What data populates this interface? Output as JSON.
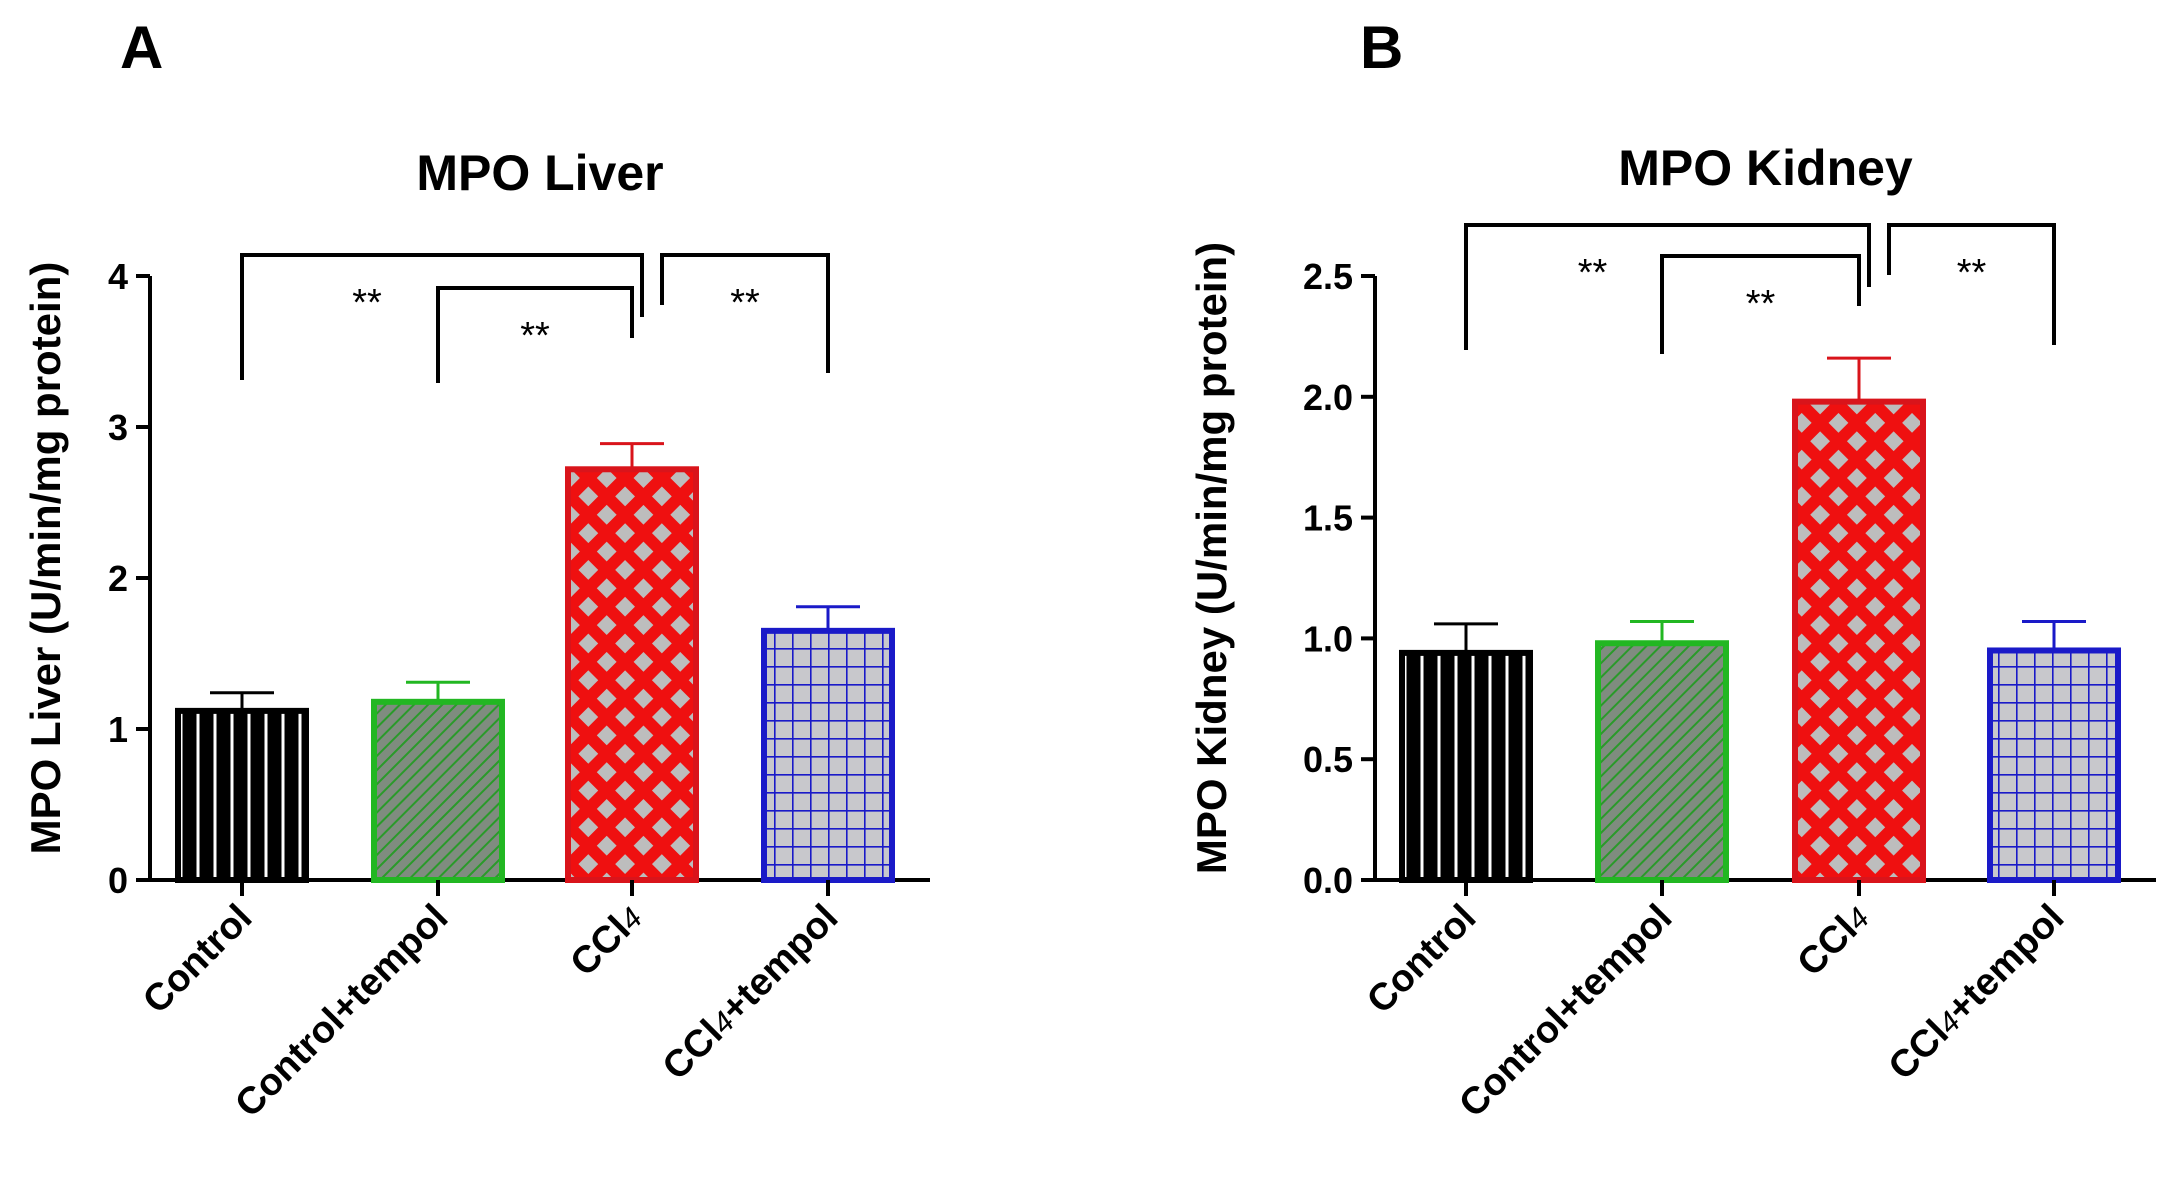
{
  "chart_data": [
    {
      "type": "bar",
      "panel": "A",
      "title": "MPO Liver",
      "xlabel": "",
      "ylabel": "MPO Liver (U/min/mg protein)",
      "ylim": [
        0,
        4
      ],
      "yticks": [
        "0",
        "1",
        "2",
        "3",
        "4"
      ],
      "categories": [
        "Control",
        "Control+tempol",
        "CCl4",
        "CCl4+tempol"
      ],
      "category_parts": [
        [
          {
            "t": "Control",
            "sub": false
          }
        ],
        [
          {
            "t": "Control+tempol",
            "sub": false
          }
        ],
        [
          {
            "t": "CCl",
            "sub": false
          },
          {
            "t": "4",
            "sub": true
          }
        ],
        [
          {
            "t": "CCl",
            "sub": false
          },
          {
            "t": "4",
            "sub": true
          },
          {
            "t": "+tempol",
            "sub": false
          }
        ]
      ],
      "values": [
        1.12,
        1.18,
        2.72,
        1.65
      ],
      "errors": [
        0.12,
        0.13,
        0.17,
        0.16
      ],
      "colors": [
        "#000000",
        "#22b722",
        "#d9141b",
        "#1a1ac8"
      ],
      "patterns": [
        "vertical-lines",
        "diagonal-lines",
        "crosshatch-diamond",
        "grid"
      ],
      "significance": [
        {
          "from": 0,
          "to": 2,
          "label": "**"
        },
        {
          "from": 1,
          "to": 2,
          "label": "**"
        },
        {
          "from": 2,
          "to": 3,
          "label": "**"
        }
      ]
    },
    {
      "type": "bar",
      "panel": "B",
      "title": "MPO Kidney",
      "xlabel": "",
      "ylabel": "MPO Kidney (U/min/mg protein)",
      "ylim": [
        0,
        2.5
      ],
      "yticks": [
        "0.0",
        "0.5",
        "1.0",
        "1.5",
        "2.0",
        "2.5"
      ],
      "categories": [
        "Control",
        "Control+tempol",
        "CCl4",
        "CCl4+tempol"
      ],
      "category_parts": [
        [
          {
            "t": "Control",
            "sub": false
          }
        ],
        [
          {
            "t": "Control+tempol",
            "sub": false
          }
        ],
        [
          {
            "t": "CCl",
            "sub": false
          },
          {
            "t": "4",
            "sub": true
          }
        ],
        [
          {
            "t": "CCl",
            "sub": false
          },
          {
            "t": "4",
            "sub": true
          },
          {
            "t": "+tempol",
            "sub": false
          }
        ]
      ],
      "values": [
        0.94,
        0.98,
        1.98,
        0.95
      ],
      "errors": [
        0.12,
        0.09,
        0.18,
        0.12
      ],
      "colors": [
        "#000000",
        "#22b722",
        "#d9141b",
        "#1a1ac8"
      ],
      "patterns": [
        "vertical-lines",
        "diagonal-lines",
        "crosshatch-diamond",
        "grid"
      ],
      "significance": [
        {
          "from": 0,
          "to": 2,
          "label": "**"
        },
        {
          "from": 1,
          "to": 2,
          "label": "**"
        },
        {
          "from": 2,
          "to": 3,
          "label": "**"
        }
      ]
    }
  ]
}
